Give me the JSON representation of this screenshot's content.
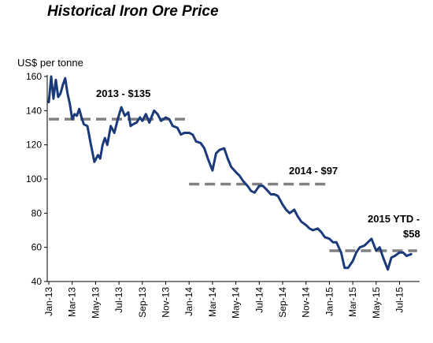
{
  "chart_data": {
    "type": "line",
    "title": "Historical Iron Ore Price",
    "ylabel": "US$ per tonne",
    "xlabel": "",
    "ylim": [
      40,
      160
    ],
    "yticks": [
      40,
      60,
      80,
      100,
      120,
      140,
      160
    ],
    "x_ticks": [
      "Jan-13",
      "Mar-13",
      "May-13",
      "Jul-13",
      "Sep-13",
      "Nov-13",
      "Jan-14",
      "Mar-14",
      "May-14",
      "Jul-14",
      "Sep-14",
      "Nov-14",
      "Jan-15",
      "Mar-15",
      "May-15",
      "Jul-15"
    ],
    "grid": false,
    "line_color": "#1b3a7a",
    "avg_color": "#808080",
    "series": [
      {
        "x_month": [
          0,
          0.2,
          0.4,
          0.6,
          0.8,
          1.0,
          1.2,
          1.4,
          1.6,
          1.8,
          2.0,
          2.2,
          2.4,
          2.6,
          2.8,
          3.0,
          3.3,
          3.6,
          3.9,
          4.2,
          4.4,
          4.6,
          4.8,
          5.0,
          5.3,
          5.6,
          5.9,
          6.2,
          6.5,
          6.8,
          7.0,
          7.2,
          7.5,
          7.8,
          8.0,
          8.3,
          8.6,
          9.0,
          9.3,
          9.6,
          10.0,
          10.3,
          10.6,
          11.0,
          11.3,
          11.6,
          12.0,
          12.3,
          12.6,
          13.0,
          13.3,
          13.6,
          14.0,
          14.3,
          14.6,
          15.0,
          15.3,
          15.6,
          16.0,
          16.3,
          16.6,
          17.0,
          17.3,
          17.6,
          18.0,
          18.3,
          18.6,
          19.0,
          19.3,
          19.6,
          20.0,
          20.3,
          20.6,
          21.0,
          21.3,
          21.6,
          22.0,
          22.3,
          22.6,
          23.0,
          23.3,
          23.6,
          24.0,
          24.3,
          24.6,
          25.0,
          25.3,
          25.6,
          26.0,
          26.3,
          26.6,
          27.0,
          27.3,
          27.6,
          28.0,
          28.3,
          28.6,
          29.0,
          29.3,
          29.6,
          30.0,
          30.3,
          30.6,
          31.0
        ],
        "y": [
          145,
          160,
          147,
          158,
          148,
          150,
          155,
          159,
          150,
          144,
          135,
          138,
          137,
          141,
          136,
          132,
          131,
          120,
          110,
          114,
          112,
          120,
          124,
          120,
          131,
          127,
          135,
          142,
          137,
          139,
          131,
          132,
          133,
          136,
          134,
          138,
          133,
          140,
          138,
          134,
          136,
          135,
          131,
          130,
          126,
          127,
          127,
          126,
          122,
          121,
          118,
          112,
          105,
          115,
          117,
          118,
          112,
          107,
          104,
          102,
          99,
          96,
          93,
          92,
          96,
          96,
          94,
          91,
          91,
          90,
          85,
          82,
          80,
          82,
          78,
          75,
          73,
          71,
          70,
          71,
          69,
          66,
          65,
          63,
          63,
          57,
          48,
          48,
          52,
          57,
          60,
          61,
          63,
          65,
          58,
          60,
          54,
          47,
          54,
          55,
          57,
          57,
          55,
          56
        ],
        "name": ""
      }
    ],
    "averages": [
      {
        "label": "2013 - $135",
        "value": 135,
        "from_month": 0,
        "to_month": 12
      },
      {
        "label": "2014 - $97",
        "value": 97,
        "from_month": 12,
        "to_month": 24
      },
      {
        "label_line1": "2015 YTD -",
        "label_line2": "$58",
        "value": 58,
        "from_month": 24,
        "to_month": 31.5
      }
    ]
  }
}
